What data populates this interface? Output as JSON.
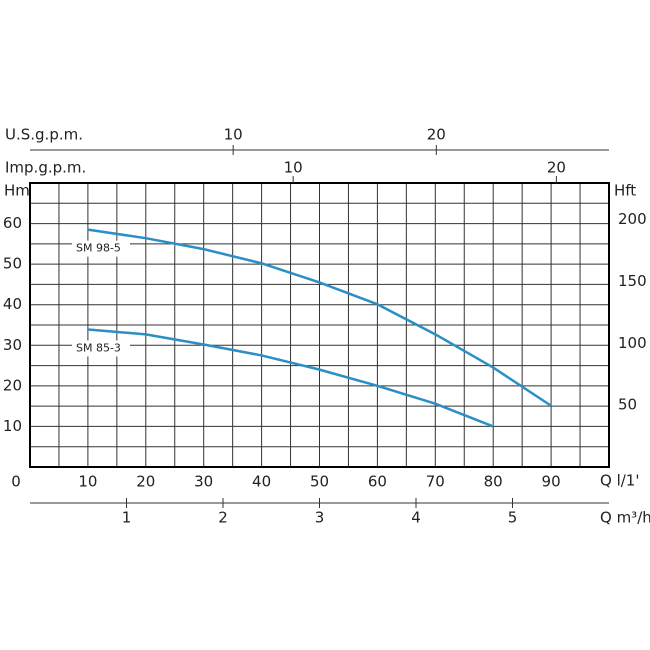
{
  "chart_data": {
    "type": "line",
    "xlabel": "Q l/1'",
    "ylabel": "Hm",
    "y2label": "Hft",
    "xlim": [
      0,
      100
    ],
    "xticks": [
      0,
      10,
      20,
      30,
      40,
      50,
      60,
      70,
      80,
      90
    ],
    "ylim": [
      0,
      70
    ],
    "yticks": [
      10,
      20,
      30,
      40,
      50,
      60
    ],
    "y2lim": [
      0,
      229.66
    ],
    "y2ticks": [
      50,
      100,
      150,
      200
    ],
    "xgrid": [
      0,
      5,
      10,
      15,
      20,
      25,
      30,
      35,
      40,
      45,
      50,
      55,
      60,
      65,
      70,
      75,
      80,
      85,
      90,
      95,
      100
    ],
    "ygrid": [
      0,
      5,
      10,
      15,
      20,
      25,
      30,
      35,
      40,
      45,
      50,
      55,
      60,
      65,
      70
    ],
    "series": [
      {
        "name": "SM 98-5",
        "color": "#2a8fc4",
        "x": [
          10,
          20,
          30,
          40,
          50,
          60,
          70,
          80,
          90
        ],
        "values": [
          58.5,
          56.4,
          53.7,
          50.2,
          45.5,
          40.1,
          32.7,
          24.5,
          15.1
        ]
      },
      {
        "name": "SM 85-3",
        "color": "#2a8fc4",
        "x": [
          10,
          20,
          30,
          40,
          50,
          60,
          70,
          80
        ],
        "values": [
          33.9,
          32.7,
          30.2,
          27.5,
          24,
          20,
          15.6,
          10
        ]
      }
    ],
    "extra_axes": [
      {
        "label": "U.S.g.p.m.",
        "xlim": [
          0,
          28.5
        ],
        "xticks": [
          10,
          20
        ]
      },
      {
        "label": "Imp.g.p.m.",
        "xlim": [
          0,
          22
        ],
        "xticks": [
          10,
          20
        ]
      },
      {
        "label": "Q m³/h",
        "xlim": [
          0,
          6
        ],
        "xticks": [
          1,
          2,
          3,
          4,
          5
        ]
      }
    ]
  }
}
